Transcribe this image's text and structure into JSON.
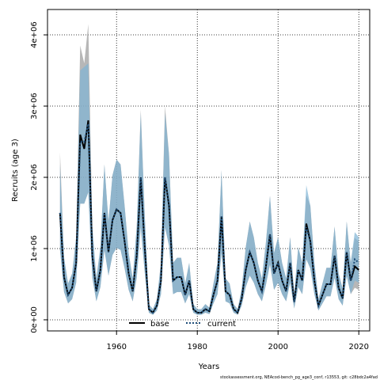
{
  "chart_data": {
    "type": "line",
    "x_label": "Years",
    "y_label": "Recruits (age 3)",
    "footer": "stockassessment.org, NEAcod-bench_pg_age3_conf, r13553, git: c28bdc2a4fad",
    "x": [
      1946,
      1947,
      1948,
      1949,
      1950,
      1951,
      1952,
      1953,
      1954,
      1955,
      1956,
      1957,
      1958,
      1959,
      1960,
      1961,
      1962,
      1963,
      1964,
      1965,
      1966,
      1967,
      1968,
      1969,
      1970,
      1971,
      1972,
      1973,
      1974,
      1975,
      1976,
      1977,
      1978,
      1979,
      1980,
      1981,
      1982,
      1983,
      1984,
      1985,
      1986,
      1987,
      1988,
      1989,
      1990,
      1991,
      1992,
      1993,
      1994,
      1995,
      1996,
      1997,
      1998,
      1999,
      2000,
      2001,
      2002,
      2003,
      2004,
      2005,
      2006,
      2007,
      2008,
      2009,
      2010,
      2011,
      2012,
      2013,
      2014,
      2015,
      2016,
      2017,
      2018,
      2019,
      2020
    ],
    "series": [
      {
        "name": "base",
        "color": "#000000",
        "band_color": "#999999",
        "dash": "solid",
        "values": [
          1500000,
          600000,
          350000,
          450000,
          800000,
          2600000,
          2400000,
          2800000,
          900000,
          400000,
          700000,
          1500000,
          950000,
          1400000,
          1550000,
          1500000,
          1100000,
          650000,
          400000,
          900000,
          2000000,
          1000000,
          150000,
          100000,
          200000,
          550000,
          2000000,
          1600000,
          550000,
          600000,
          600000,
          350000,
          550000,
          150000,
          100000,
          100000,
          150000,
          120000,
          350000,
          550000,
          1450000,
          400000,
          350000,
          150000,
          100000,
          300000,
          700000,
          950000,
          800000,
          550000,
          400000,
          750000,
          1200000,
          650000,
          800000,
          550000,
          400000,
          800000,
          250000,
          700000,
          550000,
          1350000,
          1100000,
          550000,
          200000,
          350000,
          500000,
          500000,
          900000,
          450000,
          300000,
          950000,
          550000,
          750000,
          700000
        ],
        "lower": [
          980000,
          390000,
          230000,
          290000,
          520000,
          1630000,
          1630000,
          1790000,
          590000,
          260000,
          460000,
          980000,
          620000,
          910000,
          1010000,
          980000,
          720000,
          420000,
          260000,
          590000,
          1300000,
          650000,
          100000,
          70000,
          130000,
          360000,
          1300000,
          1040000,
          360000,
          390000,
          390000,
          230000,
          360000,
          100000,
          70000,
          70000,
          100000,
          80000,
          230000,
          360000,
          940000,
          260000,
          230000,
          100000,
          70000,
          200000,
          460000,
          620000,
          520000,
          360000,
          260000,
          490000,
          780000,
          420000,
          520000,
          360000,
          260000,
          520000,
          160000,
          460000,
          360000,
          850000,
          720000,
          360000,
          130000,
          230000,
          330000,
          330000,
          590000,
          290000,
          200000,
          620000,
          360000,
          450000,
          420000
        ],
        "upper": [
          2350000,
          870000,
          510000,
          650000,
          1160000,
          3850000,
          3600000,
          4150000,
          1310000,
          580000,
          1020000,
          2180000,
          1380000,
          2030000,
          2250000,
          2180000,
          1600000,
          940000,
          580000,
          1310000,
          2950000,
          1450000,
          220000,
          150000,
          290000,
          800000,
          3000000,
          2320000,
          800000,
          870000,
          870000,
          510000,
          800000,
          220000,
          150000,
          150000,
          220000,
          170000,
          510000,
          800000,
          2100000,
          580000,
          510000,
          220000,
          150000,
          440000,
          1020000,
          1380000,
          1160000,
          800000,
          580000,
          1090000,
          1740000,
          940000,
          1160000,
          800000,
          580000,
          1160000,
          360000,
          1020000,
          800000,
          1750000,
          1600000,
          800000,
          290000,
          510000,
          730000,
          730000,
          1310000,
          650000,
          440000,
          1380000,
          800000,
          1150000,
          1100000
        ]
      },
      {
        "name": "current",
        "color": "#1f4e79",
        "band_color": "#7fb4d4",
        "dash": "dotted",
        "values": [
          1500000,
          600000,
          350000,
          450000,
          800000,
          2500000,
          2500000,
          2750000,
          900000,
          400000,
          700000,
          1500000,
          950000,
          1400000,
          1550000,
          1500000,
          1100000,
          650000,
          400000,
          900000,
          2000000,
          1000000,
          150000,
          100000,
          200000,
          550000,
          2000000,
          1600000,
          550000,
          600000,
          600000,
          350000,
          550000,
          150000,
          100000,
          100000,
          150000,
          120000,
          350000,
          550000,
          1450000,
          400000,
          350000,
          150000,
          100000,
          300000,
          700000,
          950000,
          800000,
          550000,
          400000,
          750000,
          1200000,
          650000,
          800000,
          550000,
          400000,
          800000,
          250000,
          700000,
          550000,
          1300000,
          1100000,
          550000,
          200000,
          350000,
          500000,
          500000,
          900000,
          450000,
          300000,
          950000,
          550000,
          850000,
          800000
        ],
        "lower": [
          980000,
          390000,
          230000,
          290000,
          520000,
          1630000,
          1630000,
          1790000,
          590000,
          260000,
          460000,
          980000,
          620000,
          910000,
          1010000,
          980000,
          720000,
          420000,
          260000,
          590000,
          1300000,
          650000,
          100000,
          70000,
          130000,
          360000,
          1300000,
          1040000,
          360000,
          390000,
          390000,
          230000,
          360000,
          100000,
          70000,
          70000,
          100000,
          80000,
          230000,
          360000,
          940000,
          260000,
          230000,
          100000,
          70000,
          200000,
          460000,
          620000,
          520000,
          360000,
          260000,
          490000,
          780000,
          420000,
          520000,
          360000,
          260000,
          520000,
          160000,
          460000,
          360000,
          850000,
          720000,
          360000,
          130000,
          230000,
          330000,
          330000,
          590000,
          290000,
          200000,
          620000,
          360000,
          550000,
          520000
        ],
        "upper": [
          2180000,
          870000,
          510000,
          650000,
          1160000,
          3500000,
          3550000,
          3600000,
          1310000,
          580000,
          1020000,
          2180000,
          1380000,
          2030000,
          2250000,
          2180000,
          1600000,
          940000,
          580000,
          1310000,
          2900000,
          1450000,
          220000,
          150000,
          290000,
          800000,
          2900000,
          2320000,
          800000,
          870000,
          870000,
          510000,
          800000,
          220000,
          150000,
          150000,
          220000,
          170000,
          510000,
          800000,
          2100000,
          580000,
          510000,
          220000,
          150000,
          440000,
          1020000,
          1380000,
          1160000,
          800000,
          580000,
          1090000,
          1740000,
          940000,
          1160000,
          800000,
          580000,
          1160000,
          360000,
          1020000,
          800000,
          1890000,
          1600000,
          800000,
          290000,
          510000,
          730000,
          730000,
          1310000,
          650000,
          440000,
          1380000,
          800000,
          1230000,
          1160000
        ]
      }
    ],
    "xlim": [
      1942.9,
      2022.7
    ],
    "ylim": [
      -156000,
      4356000
    ],
    "xticks": [
      1960,
      1980,
      2000,
      2020
    ],
    "yticks": [
      {
        "value": 0,
        "label": "0e+00"
      },
      {
        "value": 1000000,
        "label": "1e+06"
      },
      {
        "value": 2000000,
        "label": "2e+06"
      },
      {
        "value": 3000000,
        "label": "3e+06"
      },
      {
        "value": 4000000,
        "label": "4e+06"
      }
    ],
    "grid": true,
    "legend": "bottom"
  }
}
